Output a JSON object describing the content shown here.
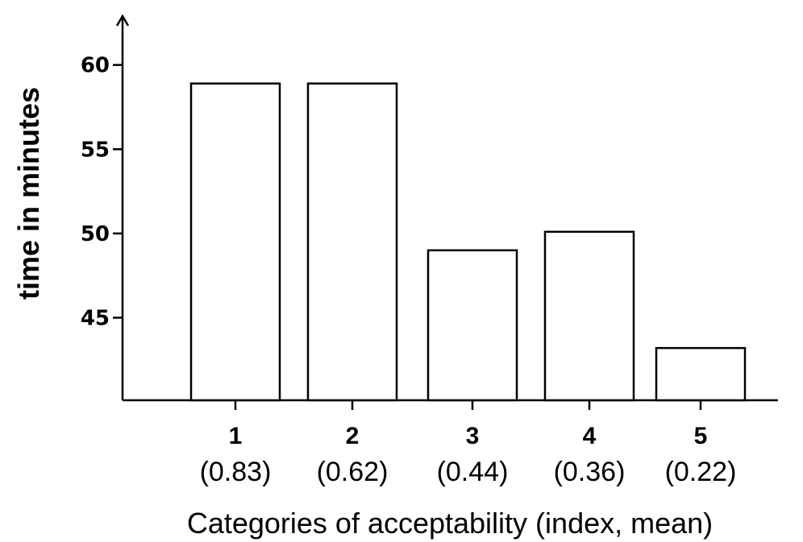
{
  "chart_data": {
    "type": "bar",
    "categories": [
      "1",
      "2",
      "3",
      "4",
      "5"
    ],
    "category_sublabels": [
      "(0.83)",
      "(0.62)",
      "(0.44)",
      "(0.36)",
      "(0.22)"
    ],
    "values": [
      58.9,
      58.9,
      49.0,
      50.1,
      43.2
    ],
    "ylabel": "time in minutes",
    "xlabel": "Categories of acceptability (index, mean)",
    "yticks": [
      45,
      50,
      55,
      60
    ],
    "ylim": [
      40.1,
      62.9
    ],
    "grid": false,
    "legend": "none",
    "bar_fill": "#ffffff",
    "bar_stroke": "#000000"
  }
}
